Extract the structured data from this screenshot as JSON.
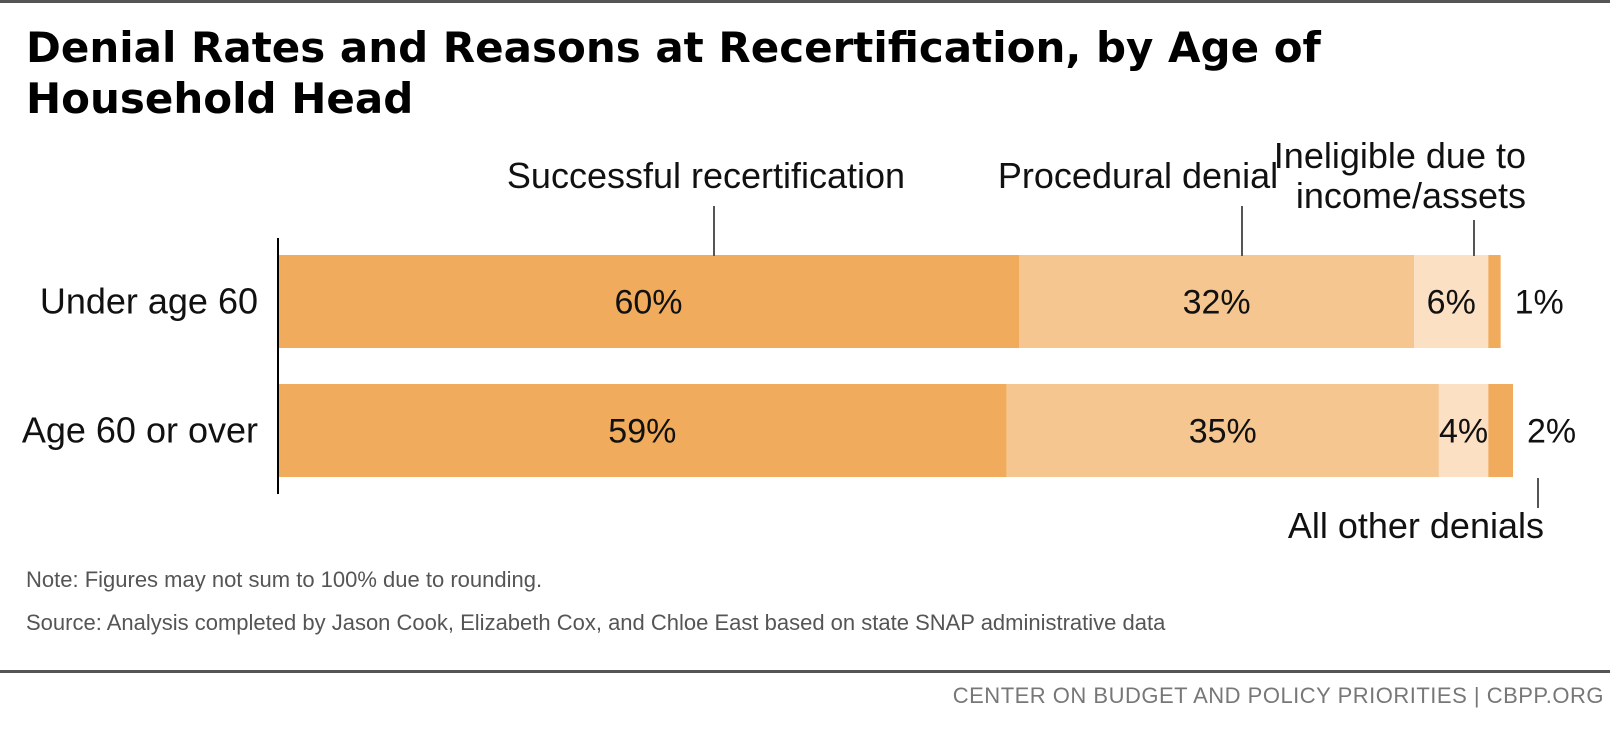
{
  "header": {
    "title": "Denial Rates and Reasons at Recertification, by Age of Household Head"
  },
  "colors": {
    "successful": "#f0ac5c",
    "procedural": "#f5c690",
    "ineligible": "#fbe0c4",
    "other": "#f0ac5c",
    "axis": "#000000",
    "text": "#111111"
  },
  "chart_data": {
    "type": "bar",
    "orientation": "horizontal",
    "stacked": true,
    "categories": [
      "Under age 60",
      "Age 60 or over"
    ],
    "series": [
      {
        "name": "Successful recertification",
        "values": [
          60,
          59
        ],
        "labels": [
          "60%",
          "59%"
        ]
      },
      {
        "name": "Procedural denial",
        "values": [
          32,
          35
        ],
        "labels": [
          "32%",
          "35%"
        ]
      },
      {
        "name": "Ineligible due to income/assets",
        "values": [
          6,
          4
        ],
        "labels": [
          "6%",
          "4%"
        ]
      },
      {
        "name": "All other denials",
        "values": [
          1,
          2
        ],
        "labels": [
          "1%",
          "2%"
        ]
      }
    ],
    "legend": "callouts"
  },
  "notes": {
    "note": "Note: Figures may not sum to 100% due to rounding.",
    "source": "Source: Analysis completed by Jason Cook, Elizabeth Cox, and Chloe East based on state SNAP administrative data"
  },
  "footer": {
    "credit": "CENTER ON BUDGET AND POLICY PRIORITIES | CBPP.ORG"
  }
}
